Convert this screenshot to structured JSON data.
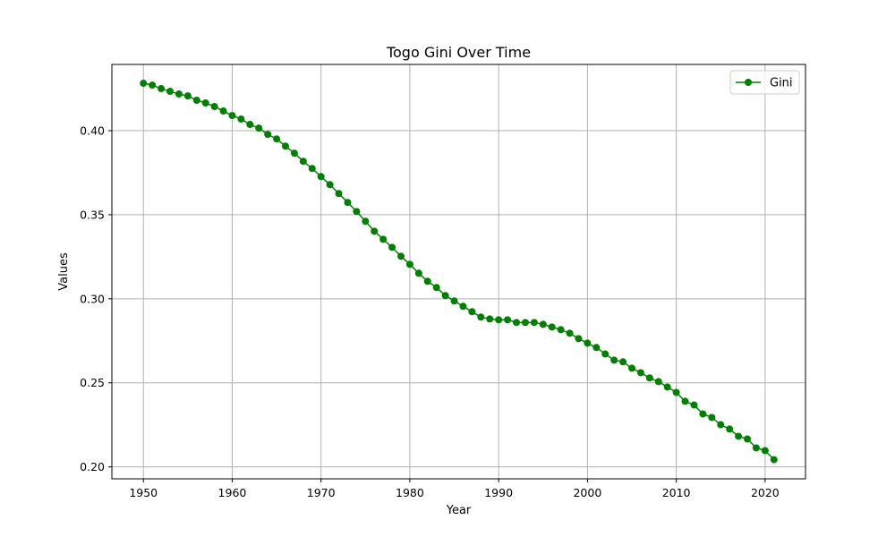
{
  "chart_data": {
    "type": "line",
    "title": "Togo Gini Over Time",
    "xlabel": "Year",
    "ylabel": "Values",
    "xlim": [
      1946.45,
      2024.55
    ],
    "ylim": [
      0.1929,
      0.4394
    ],
    "xticks": [
      1950,
      1960,
      1970,
      1980,
      1990,
      2000,
      2010,
      2020
    ],
    "xtick_labels": [
      "1950",
      "1960",
      "1970",
      "1980",
      "1990",
      "2000",
      "2010",
      "2020"
    ],
    "yticks": [
      0.2,
      0.25,
      0.3,
      0.35,
      0.4
    ],
    "ytick_labels": [
      "0.20",
      "0.25",
      "0.30",
      "0.35",
      "0.40"
    ],
    "grid": true,
    "legend_position": "top-right",
    "series": [
      {
        "name": "Gini",
        "color": "#008000",
        "marker": "circle",
        "x": [
          1950,
          1951,
          1952,
          1953,
          1954,
          1955,
          1956,
          1957,
          1958,
          1959,
          1960,
          1961,
          1962,
          1963,
          1964,
          1965,
          1966,
          1967,
          1968,
          1969,
          1970,
          1971,
          1972,
          1973,
          1974,
          1975,
          1976,
          1977,
          1978,
          1979,
          1980,
          1981,
          1982,
          1983,
          1984,
          1985,
          1986,
          1987,
          1988,
          1989,
          1990,
          1991,
          1992,
          1993,
          1994,
          1995,
          1996,
          1997,
          1998,
          1999,
          2000,
          2001,
          2002,
          2003,
          2004,
          2005,
          2006,
          2007,
          2008,
          2009,
          2010,
          2011,
          2012,
          2013,
          2014,
          2015,
          2016,
          2017,
          2018,
          2019,
          2020,
          2021
        ],
        "y": [
          0.4282,
          0.4271,
          0.425,
          0.4234,
          0.4218,
          0.4207,
          0.4181,
          0.4165,
          0.4144,
          0.4117,
          0.409,
          0.4069,
          0.4037,
          0.4015,
          0.3978,
          0.3951,
          0.3908,
          0.3866,
          0.3818,
          0.3775,
          0.3727,
          0.3679,
          0.3626,
          0.3573,
          0.3519,
          0.3461,
          0.3402,
          0.3354,
          0.3306,
          0.3253,
          0.3205,
          0.3152,
          0.3104,
          0.3067,
          0.3019,
          0.2987,
          0.2955,
          0.2923,
          0.2891,
          0.288,
          0.2875,
          0.2875,
          0.2859,
          0.2859,
          0.2859,
          0.2848,
          0.2832,
          0.2816,
          0.2795,
          0.2763,
          0.2736,
          0.271,
          0.2672,
          0.2635,
          0.2625,
          0.2587,
          0.256,
          0.2529,
          0.2507,
          0.2475,
          0.2443,
          0.239,
          0.2368,
          0.2315,
          0.2294,
          0.2251,
          0.2225,
          0.2182,
          0.2166,
          0.2113,
          0.2097,
          0.2043
        ]
      }
    ]
  }
}
